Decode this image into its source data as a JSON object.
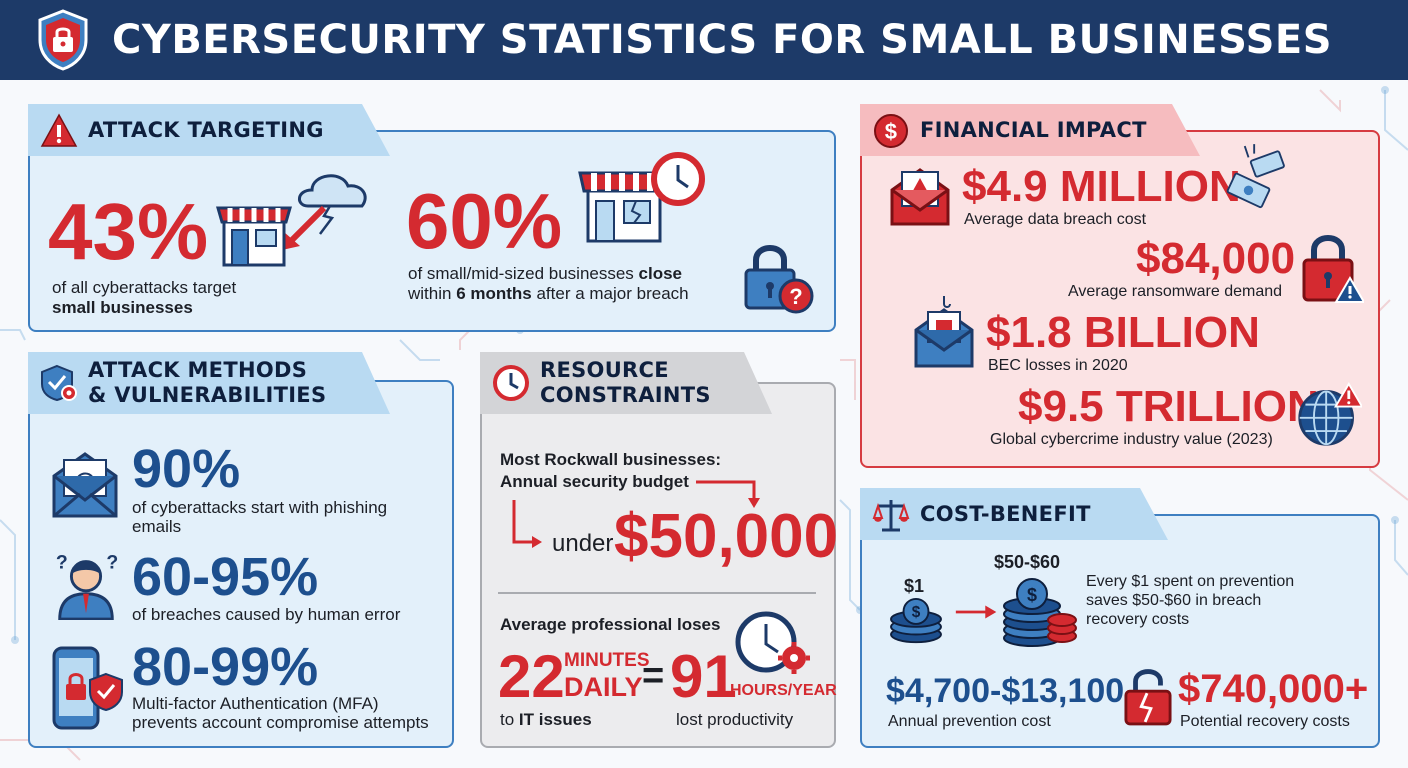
{
  "header": {
    "title": "CYBERSECURITY STATISTICS FOR SMALL BUSINESSES"
  },
  "colors": {
    "navy": "#1d3a68",
    "accent_red": "#d42a30",
    "accent_blue": "#1d4f8e",
    "panel_blue": "#e3f0fa",
    "panel_red": "#fbe3e4",
    "panel_gray": "#ececee"
  },
  "attack_targeting": {
    "title": "ATTACK TARGETING",
    "stat1": {
      "value": "43%",
      "line1": "of all cyberattacks target",
      "line2": "small businesses"
    },
    "stat2": {
      "value": "60%",
      "line1_pre": "of small/mid-sized businesses ",
      "line1_bold": "close",
      "line2_pre": "within ",
      "line2_bold": "6 months",
      "line2_post": " after a major breach"
    }
  },
  "attack_methods": {
    "title_line1": "ATTACK METHODS",
    "title_line2": "& VULNERABILITIES",
    "items": [
      {
        "value": "90%",
        "line1": "of cyberattacks start with phishing",
        "line2": "emails"
      },
      {
        "value": "60-95%",
        "line1": "of breaches caused by human error",
        "line2": ""
      },
      {
        "value": "80-99%",
        "line1": "Multi-factor Authentication (MFA)",
        "line2": "prevents account compromise attempts"
      }
    ]
  },
  "resource_constraints": {
    "title_line1": "RESOURCE",
    "title_line2": "CONSTRAINTS",
    "budget_line1": "Most Rockwall businesses:",
    "budget_line2": "Annual security budget",
    "under_label": "under",
    "budget_value": "$50,000",
    "loses_label": "Average professional loses",
    "minutes_value": "22",
    "minutes_unit1": "MINUTES",
    "minutes_unit2": "DAILY",
    "minutes_caption_pre": "to ",
    "minutes_caption_bold": "IT issues",
    "equals": "=",
    "hours_value": "91",
    "hours_unit": "HOURS/YEAR",
    "hours_caption": "lost productivity"
  },
  "financial_impact": {
    "title": "FINANCIAL IMPACT",
    "items": [
      {
        "value": "$4.9 MILLION",
        "caption": "Average data breach cost"
      },
      {
        "value": "$84,000",
        "caption": "Average ransomware demand"
      },
      {
        "value": "$1.8 BILLION",
        "caption": "BEC losses in 2020"
      },
      {
        "value": "$9.5 TRILLION",
        "caption": "Global cybercrime industry value (2023)"
      }
    ]
  },
  "cost_benefit": {
    "title": "COST-BENEFIT",
    "small_coin_label": "$1",
    "big_coin_label": "$50-$60",
    "desc_line1": "Every $1 spent on prevention",
    "desc_line2": "saves $50-$60 in breach",
    "desc_line3": "recovery costs",
    "prevention_value": "$4,700-$13,100",
    "prevention_caption": "Annual prevention cost",
    "recovery_value": "$740,000+",
    "recovery_caption": "Potential recovery costs"
  }
}
